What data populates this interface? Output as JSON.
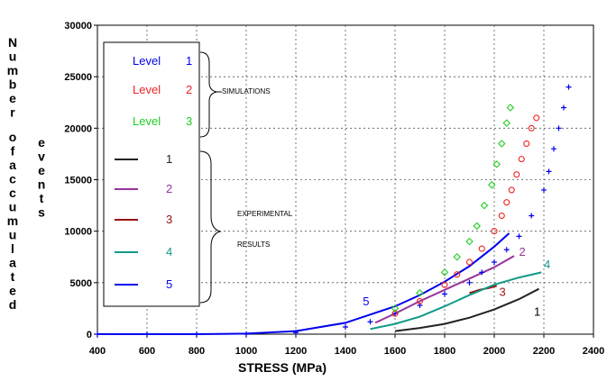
{
  "chart_data": {
    "type": "scatter",
    "xlabel": "STRESS (MPa)",
    "ylabel_lines": [
      "Number",
      "of accumulated",
      "events"
    ],
    "xlim": [
      400,
      2400
    ],
    "ylim": [
      0,
      30000
    ],
    "xticks": [
      400,
      600,
      800,
      1000,
      1200,
      1400,
      1600,
      1800,
      2000,
      2200,
      2400
    ],
    "xtick_labels": [
      "400",
      "600",
      "800",
      "1000",
      "1200",
      "1400",
      "1600",
      "1800",
      "2000",
      "2200",
      "2400"
    ],
    "yticks": [
      0,
      5000,
      10000,
      15000,
      20000,
      25000,
      30000
    ],
    "ytick_labels": [
      "0",
      "5000",
      "10000",
      "15000",
      "20000",
      "25000",
      "30000"
    ],
    "grid": true,
    "legend_placement": "upper-left",
    "annotations": {
      "simulations": "SIMULATIONS",
      "experimental": "EXPERIMENTAL",
      "results": "RESULTS"
    },
    "simulation_series": [
      {
        "name": "Level",
        "number": "1",
        "marker": "+",
        "color": "#0000ee",
        "x": [
          400,
          600,
          800,
          1000,
          1200,
          1400,
          1500,
          1600,
          1700,
          1800,
          1900,
          1950,
          2000,
          2050,
          2100,
          2150,
          2200,
          2220,
          2240,
          2260,
          2280,
          2300
        ],
        "y": [
          0,
          0,
          0,
          0,
          150,
          700,
          1200,
          2000,
          2800,
          3900,
          5000,
          6000,
          7000,
          8200,
          9500,
          11500,
          14000,
          15800,
          18000,
          20000,
          22000,
          24000
        ]
      },
      {
        "name": "Level",
        "number": "2",
        "marker": "o",
        "color": "#ee2222",
        "x": [
          1600,
          1700,
          1800,
          1850,
          1900,
          1950,
          2000,
          2030,
          2050,
          2070,
          2090,
          2110,
          2130,
          2150,
          2170
        ],
        "y": [
          2000,
          3200,
          4800,
          5800,
          7000,
          8300,
          10000,
          11500,
          12800,
          14000,
          15500,
          17000,
          18500,
          20000,
          21000
        ]
      },
      {
        "name": "Level",
        "number": "3",
        "marker": "◇",
        "color": "#22cc22",
        "x": [
          1600,
          1700,
          1800,
          1850,
          1900,
          1930,
          1960,
          1990,
          2010,
          2030,
          2050,
          2065
        ],
        "y": [
          2500,
          4000,
          6000,
          7500,
          9000,
          10500,
          12500,
          14500,
          16500,
          18500,
          20500,
          22000
        ]
      }
    ],
    "experimental_series": [
      {
        "label": "1",
        "color": "#222222",
        "x": [
          1600,
          1700,
          1800,
          1900,
          2000,
          2100,
          2180
        ],
        "y": [
          300,
          600,
          1000,
          1600,
          2400,
          3400,
          4400
        ]
      },
      {
        "label": "2",
        "color": "#993399",
        "x": [
          1520,
          1600,
          1700,
          1800,
          1900,
          2000,
          2080
        ],
        "y": [
          1100,
          2000,
          3200,
          4300,
          5400,
          6500,
          7600
        ]
      },
      {
        "label": "3",
        "color": "#991111",
        "x": [
          1900,
          1940,
          1980,
          2010
        ],
        "y": [
          4000,
          4300,
          4500,
          4700
        ]
      },
      {
        "label": "4",
        "color": "#119988",
        "x": [
          1500,
          1600,
          1700,
          1800,
          1900,
          2000,
          2100,
          2190
        ],
        "y": [
          500,
          1000,
          1700,
          2700,
          3800,
          4800,
          5500,
          6000
        ]
      },
      {
        "label": "5",
        "color": "#0000ee",
        "x": [
          400,
          800,
          1000,
          1200,
          1400,
          1600,
          1700,
          1800,
          1900,
          2000,
          2060
        ],
        "y": [
          0,
          0,
          50,
          300,
          1100,
          2700,
          3800,
          5100,
          6600,
          8500,
          9800
        ]
      }
    ],
    "curve_end_labels": [
      {
        "text": "1",
        "x": 2160,
        "y": 1800,
        "color": "#000000"
      },
      {
        "text": "2",
        "x": 2100,
        "y": 7600,
        "color": "#993399"
      },
      {
        "text": "3",
        "x": 2020,
        "y": 3700,
        "color": "#991111"
      },
      {
        "text": "4",
        "x": 2200,
        "y": 6400,
        "color": "#119988"
      },
      {
        "text": "5",
        "x": 1470,
        "y": 2800,
        "color": "#0000ee"
      }
    ]
  }
}
